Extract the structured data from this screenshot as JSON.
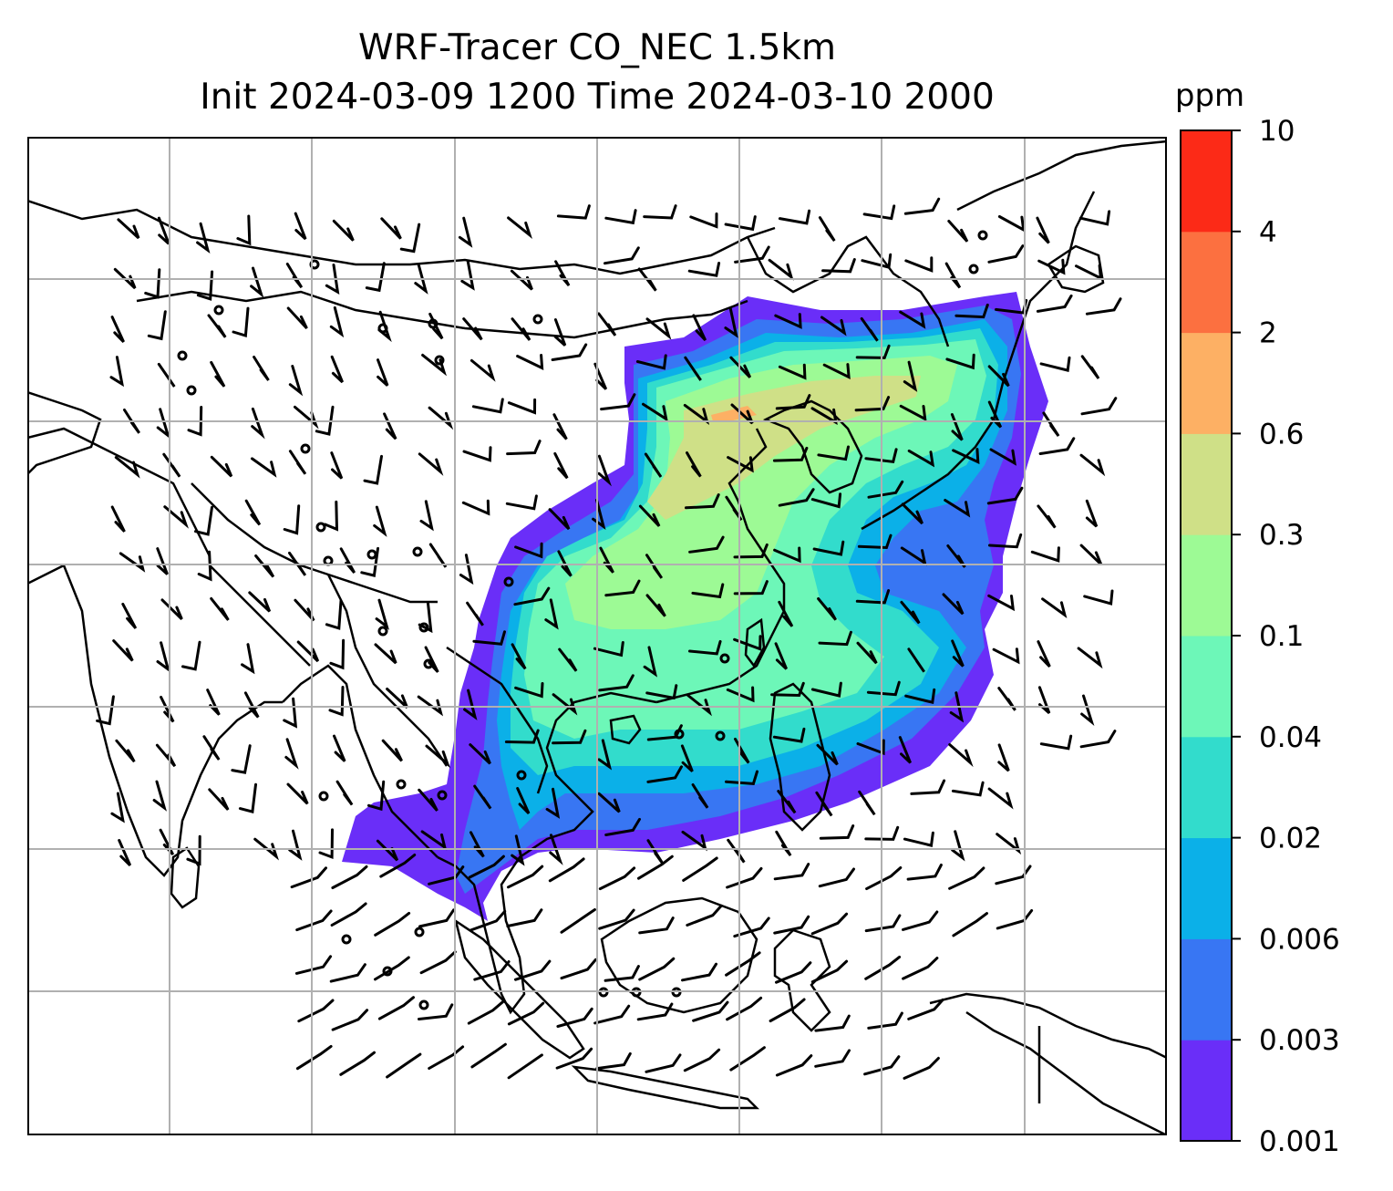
{
  "title": {
    "line1": "WRF-Tracer CO_NEC 1.5km",
    "line2": "Init 2024-03-09 1200 Time 2024-03-10 2000"
  },
  "colorbar": {
    "unit": "ppm",
    "ticks": [
      "0.001",
      "0.003",
      "0.006",
      "0.02",
      "0.04",
      "0.1",
      "0.3",
      "0.6",
      "2",
      "4",
      "10"
    ],
    "colors": [
      "#6a2ef8",
      "#3876f3",
      "#0bb0e8",
      "#32dccc",
      "#6df7b8",
      "#9dfa95",
      "#cfe087",
      "#fdb064",
      "#fc7040",
      "#fc2a17"
    ]
  },
  "map": {
    "grid": true,
    "grid_color": "#b0b0b0",
    "coastline_color": "#000000",
    "wind_barb_color": "#000000",
    "tracer_levels": [
      {
        "level": "0.001",
        "color": "#6a2ef8"
      },
      {
        "level": "0.003",
        "color": "#3876f3"
      },
      {
        "level": "0.006",
        "color": "#0bb0e8"
      },
      {
        "level": "0.02",
        "color": "#32dccc"
      },
      {
        "level": "0.04",
        "color": "#6df7b8"
      },
      {
        "level": "0.1",
        "color": "#9dfa95"
      },
      {
        "level": "0.3",
        "color": "#cfe087"
      },
      {
        "level": "0.6",
        "color": "#fdb064"
      }
    ]
  }
}
